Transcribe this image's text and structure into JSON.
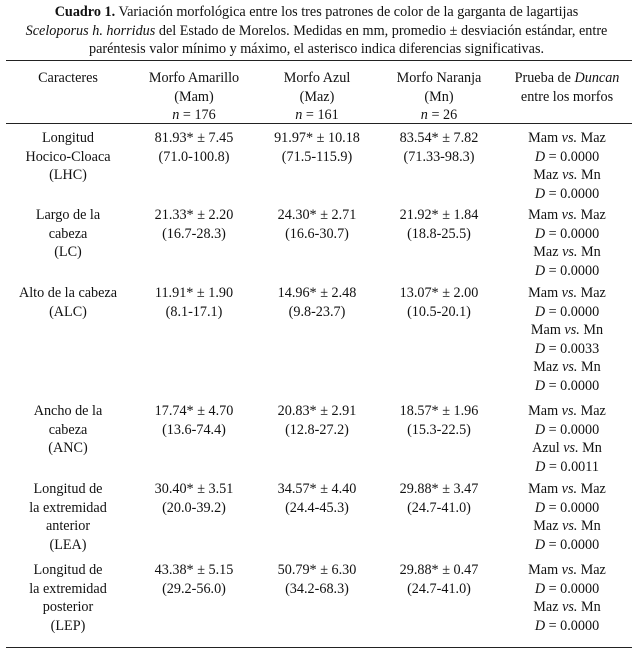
{
  "caption": {
    "label": "Cuadro 1.",
    "line1_rest": "Variación morfológica entre los tres patrones de color de la garganta de lagartijas",
    "species_genus": "Sceloporus",
    "species_epithet": "h. horridus",
    "line2_rest": "del Estado de Morelos. Medidas en mm, promedio ± desviación estándar, entre",
    "line3": "paréntesis valor mínimo y máximo, el asterisco indica diferencias significativas."
  },
  "header": {
    "caracteres": "Caracteres",
    "amarillo": {
      "name": "Morfo Amarillo",
      "abbr": "(Mam)",
      "n_label": "n",
      "n_value": "= 176"
    },
    "azul": {
      "name": "Morfo Azul",
      "abbr": "(Maz)",
      "n_label": "n",
      "n_value": "= 161"
    },
    "naranja": {
      "name": "Morfo Naranja",
      "abbr": "(Mn)",
      "n_label": "n",
      "n_value": "= 26"
    },
    "prueba": {
      "line1_prefix": "Prueba de",
      "line1_italic": "Duncan",
      "line2": "entre los morfos"
    }
  },
  "rows": [
    {
      "caracter": [
        "Longitud",
        "Hocico-Cloaca",
        "(LHC)"
      ],
      "amarillo": [
        "81.93* ± 7.45",
        "(71.0-100.8)"
      ],
      "azul": [
        "91.97* ± 10.18",
        "(71.5-115.9)"
      ],
      "naranja": [
        "83.54* ± 7.82",
        "(71.33-98.3)"
      ],
      "duncan": [
        {
          "a": "Mam",
          "vs": "vs.",
          "b": "Maz",
          "d": "D",
          "v": "= 0.0000"
        },
        {
          "a": "Maz",
          "vs": "vs.",
          "b": "Mn",
          "d": "D",
          "v": "= 0.0000"
        }
      ]
    },
    {
      "caracter": [
        "Largo de la",
        "cabeza",
        "(LC)"
      ],
      "amarillo": [
        "21.33* ± 2.20",
        "(16.7-28.3)"
      ],
      "azul": [
        "24.30* ± 2.71",
        "(16.6-30.7)"
      ],
      "naranja": [
        "21.92* ± 1.84",
        "(18.8-25.5)"
      ],
      "duncan": [
        {
          "a": "Mam",
          "vs": "vs.",
          "b": "Maz",
          "d": "D",
          "v": "= 0.0000"
        },
        {
          "a": "Maz",
          "vs": "vs.",
          "b": "Mn",
          "d": "D",
          "v": "= 0.0000"
        }
      ]
    },
    {
      "caracter": [
        "Alto de la cabeza",
        "(ALC)"
      ],
      "amarillo": [
        "11.91* ± 1.90",
        "(8.1-17.1)"
      ],
      "azul": [
        "14.96* ± 2.48",
        "(9.8-23.7)"
      ],
      "naranja": [
        "13.07* ± 2.00",
        "(10.5-20.1)"
      ],
      "duncan": [
        {
          "a": "Mam",
          "vs": "vs.",
          "b": "Maz",
          "d": "D",
          "v": "= 0.0000"
        },
        {
          "a": "Mam",
          "vs": "vs.",
          "b": "Mn",
          "d": "D",
          "v": "= 0.0033"
        },
        {
          "a": "Maz",
          "vs": "vs.",
          "b": "Mn",
          "d": "D",
          "v": "= 0.0000"
        }
      ]
    },
    {
      "caracter": [
        "Ancho de la",
        "cabeza",
        "(ANC)"
      ],
      "amarillo": [
        "17.74* ± 4.70",
        "(13.6-74.4)"
      ],
      "azul": [
        "20.83* ± 2.91",
        "(12.8-27.2)"
      ],
      "naranja": [
        "18.57* ± 1.96",
        "(15.3-22.5)"
      ],
      "duncan": [
        {
          "a": "Mam",
          "vs": "vs.",
          "b": "Maz",
          "d": "D",
          "v": "= 0.0000"
        },
        {
          "a": "Azul",
          "vs": "vs.",
          "b": "Mn",
          "d": "D",
          "v": "= 0.0011"
        }
      ]
    },
    {
      "caracter": [
        "Longitud de",
        "la extremidad",
        "anterior",
        "(LEA)"
      ],
      "amarillo": [
        "30.40* ± 3.51",
        "(20.0-39.2)"
      ],
      "azul": [
        "34.57* ± 4.40",
        "(24.4-45.3)"
      ],
      "naranja": [
        "29.88* ± 3.47",
        "(24.7-41.0)"
      ],
      "duncan": [
        {
          "a": "Mam",
          "vs": "vs.",
          "b": "Maz",
          "d": "D",
          "v": "= 0.0000"
        },
        {
          "a": "Maz",
          "vs": "vs.",
          "b": "Mn",
          "d": "D",
          "v": "= 0.0000"
        }
      ]
    },
    {
      "caracter": [
        "Longitud de",
        "la extremidad",
        "posterior",
        "(LEP)"
      ],
      "amarillo": [
        "43.38* ± 5.15",
        "(29.2-56.0)"
      ],
      "azul": [
        "50.79* ± 6.30",
        "(34.2-68.3)"
      ],
      "naranja": [
        "29.88* ± 0.47",
        "(24.7-41.0)"
      ],
      "duncan": [
        {
          "a": "Mam",
          "vs": "vs.",
          "b": "Maz",
          "d": "D",
          "v": "= 0.0000"
        },
        {
          "a": "Maz",
          "vs": "vs.",
          "b": "Mn",
          "d": "D",
          "v": "= 0.0000"
        }
      ]
    }
  ]
}
